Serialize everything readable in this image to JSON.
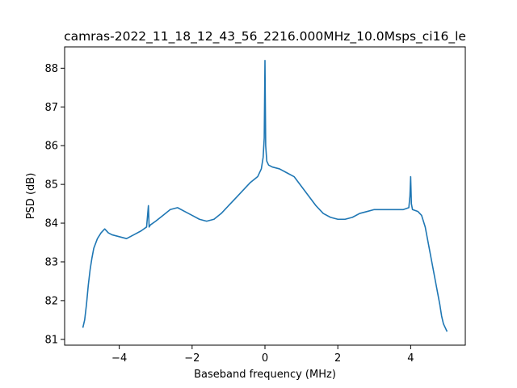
{
  "chart_data": {
    "type": "line",
    "title": "camras-2022_11_18_12_43_56_2216.000MHz_10.0Msps_ci16_le",
    "xlabel": "Baseband frequency (MHz)",
    "ylabel": "PSD (dB)",
    "xlim": [
      -5.5,
      5.5
    ],
    "ylim": [
      80.85,
      88.55
    ],
    "xticks": [
      -4,
      -2,
      0,
      2,
      4
    ],
    "xtick_labels": [
      "−4",
      "−2",
      "0",
      "2",
      "4"
    ],
    "yticks": [
      81,
      82,
      83,
      84,
      85,
      86,
      87,
      88
    ],
    "ytick_labels": [
      "81",
      "82",
      "83",
      "84",
      "85",
      "86",
      "87",
      "88"
    ],
    "grid": false,
    "legend": "none",
    "series": [
      {
        "color": "#1f77b4",
        "x": [
          -5.0,
          -4.95,
          -4.9,
          -4.85,
          -4.8,
          -4.75,
          -4.7,
          -4.6,
          -4.5,
          -4.4,
          -4.3,
          -4.2,
          -4.0,
          -3.8,
          -3.6,
          -3.4,
          -3.25,
          -3.2,
          -3.18,
          -3.15,
          -3.0,
          -2.8,
          -2.6,
          -2.4,
          -2.2,
          -2.0,
          -1.8,
          -1.6,
          -1.4,
          -1.2,
          -1.0,
          -0.8,
          -0.6,
          -0.4,
          -0.2,
          -0.1,
          -0.05,
          -0.02,
          0.0,
          0.02,
          0.05,
          0.1,
          0.2,
          0.4,
          0.6,
          0.8,
          1.0,
          1.2,
          1.4,
          1.6,
          1.8,
          2.0,
          2.2,
          2.4,
          2.6,
          2.8,
          3.0,
          3.2,
          3.4,
          3.6,
          3.8,
          3.95,
          3.98,
          4.0,
          4.02,
          4.05,
          4.2,
          4.3,
          4.4,
          4.5,
          4.6,
          4.7,
          4.8,
          4.85,
          4.9,
          4.95,
          5.0
        ],
        "y": [
          81.3,
          81.5,
          81.9,
          82.4,
          82.8,
          83.1,
          83.35,
          83.6,
          83.75,
          83.85,
          83.75,
          83.7,
          83.65,
          83.6,
          83.7,
          83.8,
          83.9,
          84.45,
          83.9,
          83.95,
          84.05,
          84.2,
          84.35,
          84.4,
          84.3,
          84.2,
          84.1,
          84.05,
          84.1,
          84.25,
          84.45,
          84.65,
          84.85,
          85.05,
          85.2,
          85.4,
          85.7,
          86.2,
          88.2,
          86.0,
          85.6,
          85.5,
          85.45,
          85.4,
          85.3,
          85.2,
          84.95,
          84.7,
          84.45,
          84.25,
          84.15,
          84.1,
          84.1,
          84.15,
          84.25,
          84.3,
          84.35,
          84.35,
          84.35,
          84.35,
          84.35,
          84.4,
          84.7,
          85.2,
          84.5,
          84.35,
          84.3,
          84.2,
          83.9,
          83.4,
          82.9,
          82.4,
          81.9,
          81.6,
          81.4,
          81.3,
          81.2
        ]
      }
    ]
  }
}
